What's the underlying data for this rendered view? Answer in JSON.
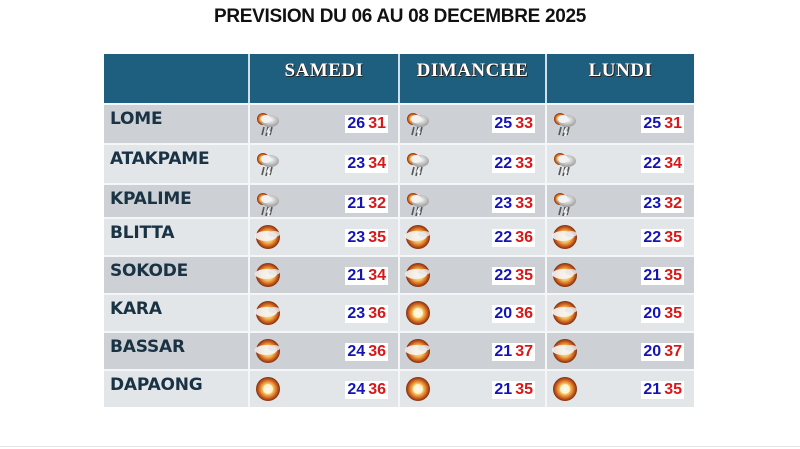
{
  "title": "PREVISION DU 06 AU 08 DECEMBRE 2025",
  "colors": {
    "header_bg": "#1e5f80",
    "min_temp": "#1414b4",
    "max_temp": "#d81818",
    "city_text": "#1a3344"
  },
  "table": {
    "headers": [
      "",
      "SAMEDI",
      "DIMANCHE",
      "LUNDI"
    ],
    "rows": [
      {
        "city": "LOME",
        "days": [
          {
            "icon": "thunderstorm-rain-icon",
            "min": "26",
            "max": "31"
          },
          {
            "icon": "thunderstorm-rain-icon",
            "min": "25",
            "max": "33"
          },
          {
            "icon": "thunderstorm-rain-icon",
            "min": "25",
            "max": "31"
          }
        ]
      },
      {
        "city": "ATAKPAME",
        "days": [
          {
            "icon": "thunderstorm-rain-icon",
            "min": "23",
            "max": "34"
          },
          {
            "icon": "thunderstorm-rain-icon",
            "min": "22",
            "max": "33"
          },
          {
            "icon": "thunderstorm-rain-icon",
            "min": "22",
            "max": "34"
          }
        ]
      },
      {
        "city": "KPALIME",
        "days": [
          {
            "icon": "thunderstorm-rain-icon",
            "min": "21",
            "max": "32"
          },
          {
            "icon": "thunderstorm-rain-icon",
            "min": "23",
            "max": "33"
          },
          {
            "icon": "thunderstorm-rain-icon",
            "min": "23",
            "max": "32"
          }
        ]
      },
      {
        "city": "BLITTA",
        "days": [
          {
            "icon": "sun-haze-icon",
            "min": "23",
            "max": "35"
          },
          {
            "icon": "sun-haze-icon",
            "min": "22",
            "max": "36"
          },
          {
            "icon": "sun-haze-icon",
            "min": "22",
            "max": "35"
          }
        ]
      },
      {
        "city": "SOKODE",
        "days": [
          {
            "icon": "sun-haze-icon",
            "min": "21",
            "max": "34"
          },
          {
            "icon": "sun-haze-icon",
            "min": "22",
            "max": "35"
          },
          {
            "icon": "sun-haze-icon",
            "min": "21",
            "max": "35"
          }
        ]
      },
      {
        "city": "KARA",
        "days": [
          {
            "icon": "sun-haze-icon",
            "min": "23",
            "max": "36"
          },
          {
            "icon": "sun-icon",
            "min": "20",
            "max": "36"
          },
          {
            "icon": "sun-haze-icon",
            "min": "20",
            "max": "35"
          }
        ]
      },
      {
        "city": "BASSAR",
        "days": [
          {
            "icon": "sun-haze-icon",
            "min": "24",
            "max": "36"
          },
          {
            "icon": "sun-haze-icon",
            "min": "21",
            "max": "37"
          },
          {
            "icon": "sun-haze-icon",
            "min": "20",
            "max": "37"
          }
        ]
      },
      {
        "city": "DAPAONG",
        "days": [
          {
            "icon": "sun-icon",
            "min": "24",
            "max": "36"
          },
          {
            "icon": "sun-icon",
            "min": "21",
            "max": "35"
          },
          {
            "icon": "sun-icon",
            "min": "21",
            "max": "35"
          }
        ]
      }
    ]
  }
}
